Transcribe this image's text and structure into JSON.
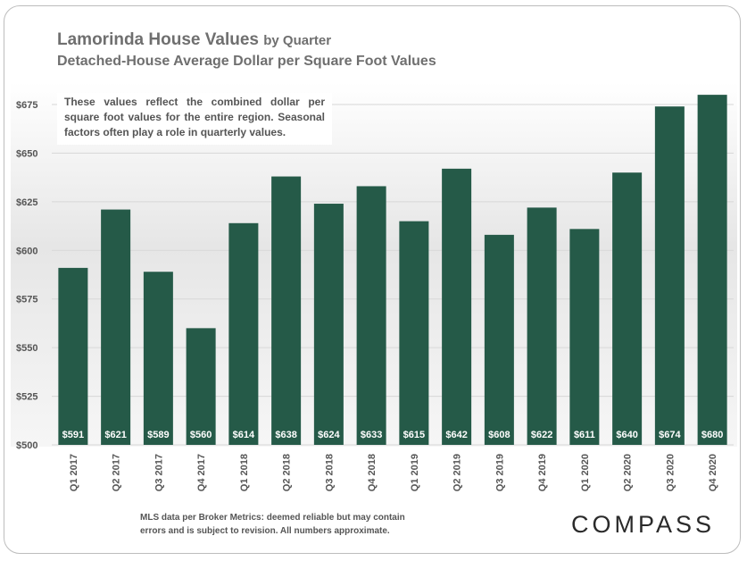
{
  "title_main": "Lamorinda House Values",
  "title_suffix": "by Quarter",
  "subtitle": "Detached-House Average Dollar per Square Foot Values",
  "note": "These values reflect the combined dollar per square foot values for the entire region. Seasonal factors often play a role in quarterly values.",
  "footer_line1": "MLS data per Broker Metrics:  deemed reliable but may contain",
  "footer_line2": "errors and is subject to revision. All numbers approximate.",
  "logo": "COMPASS",
  "colors": {
    "bar": "#255a48",
    "label": "#ffffff",
    "axis_text": "#555555"
  },
  "chart_data": {
    "type": "bar",
    "categories": [
      "Q1 2017",
      "Q2 2017",
      "Q3 2017",
      "Q4 2017",
      "Q1 2018",
      "Q2 2018",
      "Q3 2018",
      "Q4 2018",
      "Q1 2019",
      "Q2 2019",
      "Q3 2019",
      "Q4 2019",
      "Q1 2020",
      "Q2 2020",
      "Q3 2020",
      "Q4 2020"
    ],
    "values": [
      591,
      621,
      589,
      560,
      614,
      638,
      624,
      633,
      615,
      642,
      608,
      622,
      611,
      640,
      674,
      680
    ],
    "value_labels": [
      "$591",
      "$621",
      "$589",
      "$560",
      "$614",
      "$638",
      "$624",
      "$633",
      "$615",
      "$642",
      "$608",
      "$622",
      "$611",
      "$640",
      "$674",
      "$680"
    ],
    "yticks": [
      500,
      525,
      550,
      575,
      600,
      625,
      650,
      675
    ],
    "ytick_labels": [
      "$500",
      "$525",
      "$550",
      "$575",
      "$600",
      "$625",
      "$650",
      "$675"
    ],
    "ylim": [
      500,
      680
    ],
    "grid": true,
    "legend": "none"
  }
}
